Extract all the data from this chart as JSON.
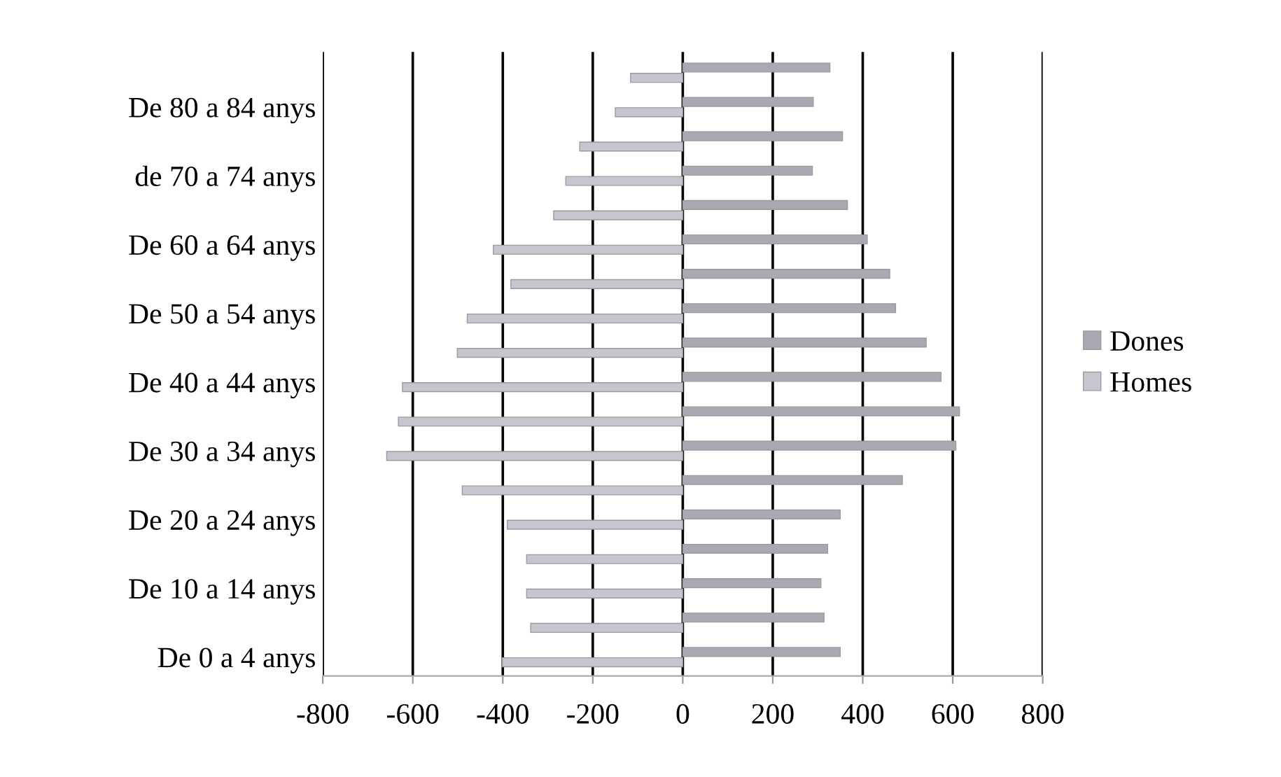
{
  "chart_data": {
    "type": "bar",
    "orientation": "horizontal",
    "categories": [
      null,
      "De 80 a 84 anys",
      null,
      "de 70 a 74 anys",
      null,
      "De 60 a 64 anys",
      null,
      "De 50 a 54 anys",
      null,
      "De 40 a 44 anys",
      null,
      "De 30 a 34 anys",
      null,
      "De 20 a 24 anys",
      null,
      "De 10 a 14 anys",
      null,
      "De 0 a 4 anys"
    ],
    "series": [
      {
        "name": "Dones",
        "color": "#a9a9b1",
        "values": [
          327,
          290,
          355,
          288,
          366,
          410,
          460,
          473,
          541,
          574,
          615,
          607,
          488,
          350,
          322,
          307,
          314,
          350
        ]
      },
      {
        "name": "Homes",
        "color": "#c6c6ce",
        "values": [
          -116,
          -150,
          -229,
          -260,
          -287,
          -421,
          -382,
          -479,
          -501,
          -623,
          -632,
          -658,
          -490,
          -390,
          -347,
          -347,
          -338,
          -401
        ]
      }
    ],
    "xlim": [
      -800,
      800
    ],
    "xticks": [
      -800,
      -600,
      -400,
      -200,
      0,
      200,
      400,
      600,
      800
    ],
    "grid": "x",
    "legend": "right"
  }
}
